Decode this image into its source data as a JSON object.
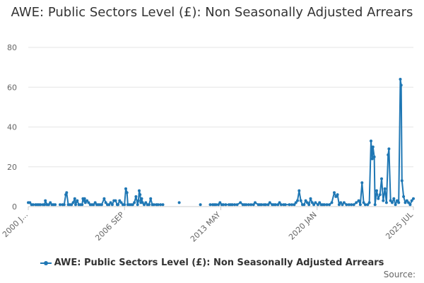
{
  "chart_data": {
    "type": "line",
    "title": "AWE: Public Sectors Level (£): Non Seasonally Adjusted Arrears",
    "xlabel": "",
    "ylabel": "",
    "ylim": [
      0,
      80
    ],
    "y_ticks": [
      "0",
      "20",
      "40",
      "60",
      "80"
    ],
    "x_ticks": [
      "2000 J...",
      "2006 SEP",
      "2013 MAY",
      "2020 JAN",
      "2025 JUL"
    ],
    "grid": true,
    "legend_position": "bottom",
    "color": "#1f77b4",
    "series": [
      {
        "name": "AWE: Public Sectors Level (£): Non Seasonally Adjusted Arrears",
        "values": [
          [
            2000.0,
            2
          ],
          [
            2000.2,
            2
          ],
          [
            2000.4,
            1
          ],
          [
            2000.6,
            1
          ],
          [
            2000.9,
            1
          ],
          [
            2001.1,
            1
          ],
          [
            2001.3,
            1
          ],
          [
            2001.5,
            1
          ],
          [
            2001.8,
            1
          ],
          [
            2002.0,
            1
          ],
          [
            2002.1,
            3
          ],
          [
            2002.3,
            1
          ],
          [
            2002.5,
            1
          ],
          [
            2002.7,
            2
          ],
          [
            2002.9,
            1
          ],
          [
            2003.1,
            1
          ],
          [
            2003.3,
            1
          ],
          [
            2003.9,
            1
          ],
          [
            2004.2,
            1
          ],
          [
            2004.4,
            1
          ],
          [
            2004.6,
            6
          ],
          [
            2004.7,
            7
          ],
          [
            2004.9,
            1
          ],
          [
            2005.1,
            1
          ],
          [
            2005.3,
            1
          ],
          [
            2005.5,
            2
          ],
          [
            2005.7,
            4
          ],
          [
            2005.8,
            1
          ],
          [
            2006.0,
            3
          ],
          [
            2006.2,
            1
          ],
          [
            2006.4,
            1
          ],
          [
            2006.6,
            1
          ],
          [
            2006.7,
            4
          ],
          [
            2006.8,
            3
          ],
          [
            2006.9,
            4
          ],
          [
            2007.0,
            2
          ],
          [
            2007.2,
            3
          ],
          [
            2007.4,
            2
          ],
          [
            2007.6,
            1
          ],
          [
            2007.8,
            1
          ],
          [
            2008.0,
            1
          ],
          [
            2008.2,
            2
          ],
          [
            2008.4,
            1
          ],
          [
            2008.6,
            1
          ],
          [
            2008.8,
            1
          ],
          [
            2009.0,
            1
          ],
          [
            2009.3,
            4
          ],
          [
            2009.5,
            2
          ],
          [
            2009.7,
            1
          ],
          [
            2009.9,
            1
          ],
          [
            2010.1,
            2
          ],
          [
            2010.3,
            1
          ],
          [
            2010.5,
            3
          ],
          [
            2010.7,
            3
          ],
          [
            2010.9,
            1
          ],
          [
            2011.0,
            1
          ],
          [
            2011.2,
            3
          ],
          [
            2011.4,
            2
          ],
          [
            2011.6,
            1
          ],
          [
            2011.8,
            1
          ],
          [
            2011.95,
            9
          ],
          [
            2012.1,
            7
          ],
          [
            2012.2,
            1
          ],
          [
            2012.4,
            1
          ],
          [
            2012.6,
            1
          ],
          [
            2012.8,
            1
          ],
          [
            2013.0,
            2
          ],
          [
            2013.2,
            5
          ],
          [
            2013.4,
            1
          ],
          [
            2013.5,
            3
          ],
          [
            2013.6,
            8
          ],
          [
            2013.7,
            6
          ],
          [
            2013.8,
            2
          ],
          [
            2013.9,
            4
          ],
          [
            2014.0,
            2
          ],
          [
            2014.2,
            1
          ],
          [
            2014.4,
            2
          ],
          [
            2014.6,
            1
          ],
          [
            2014.8,
            1
          ],
          [
            2015.0,
            4
          ],
          [
            2015.2,
            1
          ],
          [
            2015.4,
            1
          ],
          [
            2015.7,
            1
          ],
          [
            2015.9,
            1
          ],
          [
            2016.2,
            1
          ],
          [
            2016.5,
            1
          ],
          [
            2018.5,
            2
          ],
          [
            2021.1,
            1
          ],
          [
            2022.3,
            1
          ],
          [
            2022.6,
            1
          ],
          [
            2022.8,
            1
          ],
          [
            2023.0,
            1
          ],
          [
            2023.3,
            1
          ],
          [
            2023.5,
            2
          ],
          [
            2023.7,
            1
          ],
          [
            2023.9,
            1
          ],
          [
            2024.2,
            1
          ],
          [
            2024.6,
            1
          ],
          [
            2024.8,
            1
          ],
          [
            2025.0,
            1
          ],
          [
            2025.3,
            1
          ],
          [
            2025.6,
            1
          ],
          [
            2026.0,
            2
          ],
          [
            2026.3,
            1
          ],
          [
            2026.5,
            1
          ],
          [
            2026.7,
            1
          ],
          [
            2027.0,
            1
          ],
          [
            2027.3,
            1
          ],
          [
            2027.6,
            1
          ],
          [
            2027.8,
            2
          ],
          [
            2028.2,
            1
          ],
          [
            2028.4,
            1
          ],
          [
            2028.6,
            1
          ],
          [
            2028.9,
            1
          ],
          [
            2029.1,
            1
          ],
          [
            2029.4,
            1
          ],
          [
            2029.6,
            2
          ],
          [
            2029.9,
            1
          ],
          [
            2030.1,
            1
          ],
          [
            2030.3,
            1
          ],
          [
            2030.6,
            1
          ],
          [
            2030.8,
            2
          ],
          [
            2031.0,
            1
          ],
          [
            2031.3,
            1
          ],
          [
            2031.5,
            1
          ],
          [
            2032.0,
            1
          ],
          [
            2032.3,
            1
          ],
          [
            2032.6,
            1
          ],
          [
            2032.8,
            2
          ],
          [
            2033.0,
            3
          ],
          [
            2033.2,
            8
          ],
          [
            2033.4,
            3
          ],
          [
            2033.6,
            1
          ],
          [
            2033.8,
            1
          ],
          [
            2034.0,
            3
          ],
          [
            2034.2,
            2
          ],
          [
            2034.4,
            1
          ],
          [
            2034.6,
            4
          ],
          [
            2034.8,
            2
          ],
          [
            2035.0,
            1
          ],
          [
            2035.2,
            2
          ],
          [
            2035.5,
            1
          ],
          [
            2035.7,
            2
          ],
          [
            2035.9,
            1
          ],
          [
            2036.1,
            1
          ],
          [
            2036.3,
            1
          ],
          [
            2036.6,
            1
          ],
          [
            2036.9,
            1
          ],
          [
            2037.2,
            2
          ],
          [
            2037.5,
            7
          ],
          [
            2037.7,
            5
          ],
          [
            2037.9,
            6
          ],
          [
            2038.1,
            1
          ],
          [
            2038.3,
            2
          ],
          [
            2038.5,
            1
          ],
          [
            2038.7,
            2
          ],
          [
            2039.0,
            1
          ],
          [
            2039.3,
            1
          ],
          [
            2039.6,
            1
          ],
          [
            2039.9,
            1
          ],
          [
            2040.2,
            2
          ],
          [
            2040.5,
            3
          ],
          [
            2040.7,
            1
          ],
          [
            2040.9,
            12
          ],
          [
            2041.1,
            2
          ],
          [
            2041.3,
            1
          ],
          [
            2041.6,
            1
          ],
          [
            2041.8,
            2
          ],
          [
            2042.0,
            33
          ],
          [
            2042.15,
            24
          ],
          [
            2042.25,
            30
          ],
          [
            2042.4,
            25
          ],
          [
            2042.5,
            1
          ],
          [
            2042.7,
            8
          ],
          [
            2042.9,
            4
          ],
          [
            2043.1,
            6
          ],
          [
            2043.3,
            14
          ],
          [
            2043.5,
            3
          ],
          [
            2043.7,
            9
          ],
          [
            2043.9,
            2
          ],
          [
            2044.1,
            26
          ],
          [
            2044.2,
            29
          ],
          [
            2044.4,
            3
          ],
          [
            2044.6,
            2
          ],
          [
            2044.8,
            4
          ],
          [
            2045.0,
            1
          ],
          [
            2045.2,
            3
          ],
          [
            2045.4,
            2
          ],
          [
            2045.6,
            64
          ],
          [
            2045.7,
            61
          ],
          [
            2045.8,
            13
          ],
          [
            2046.0,
            5
          ],
          [
            2046.2,
            2
          ],
          [
            2046.4,
            3
          ],
          [
            2046.6,
            2
          ],
          [
            2046.8,
            1
          ],
          [
            2047.0,
            3
          ],
          [
            2047.2,
            4
          ]
        ]
      }
    ]
  },
  "source_label": "Source:"
}
